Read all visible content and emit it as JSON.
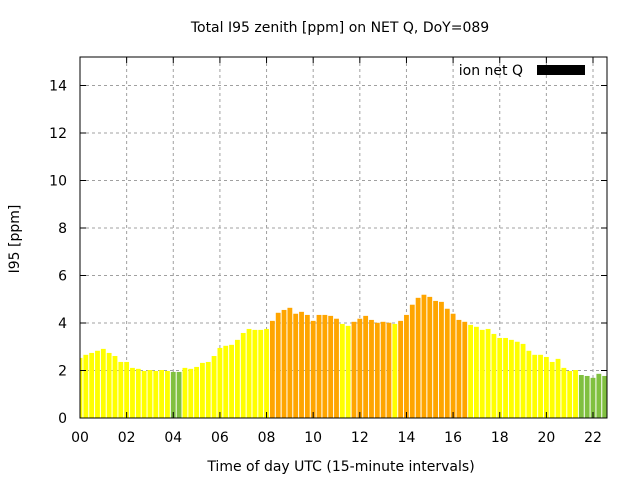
{
  "chart_data": {
    "type": "bar",
    "title": "Total I95 zenith [ppm] on NET Q, DoY=089",
    "xlabel": "Time of day UTC (15-minute intervals)",
    "ylabel": "I95 [ppm]",
    "xlim": [
      0,
      22.6
    ],
    "ylim": [
      0,
      15.2
    ],
    "x_ticks": [
      0,
      2,
      4,
      6,
      8,
      10,
      12,
      14,
      16,
      18,
      20,
      22
    ],
    "x_tick_labels": [
      "00",
      "02",
      "04",
      "06",
      "08",
      "10",
      "12",
      "14",
      "16",
      "18",
      "20",
      "22"
    ],
    "y_ticks": [
      0,
      2,
      4,
      6,
      8,
      10,
      12,
      14
    ],
    "y_tick_labels": [
      "0",
      "2",
      "4",
      "6",
      "8",
      "10",
      "12",
      "14"
    ],
    "grid": true,
    "legend": {
      "placement": "top-right",
      "entries": [
        {
          "label": "ion net Q",
          "color": "#000000"
        }
      ]
    },
    "bar_interval_hours": 0.25,
    "colors": {
      "g": "#80c040",
      "y": "#ffff00",
      "o": "#ffa500"
    },
    "series": [
      {
        "name": "ion net Q",
        "values": [
          2.53,
          2.66,
          2.74,
          2.83,
          2.91,
          2.74,
          2.61,
          2.36,
          2.36,
          2.11,
          2.07,
          1.98,
          2.02,
          1.98,
          2.02,
          1.98,
          1.94,
          1.94,
          2.11,
          2.07,
          2.15,
          2.32,
          2.36,
          2.61,
          2.95,
          3.04,
          3.08,
          3.29,
          3.58,
          3.75,
          3.71,
          3.71,
          3.75,
          4.09,
          4.43,
          4.55,
          4.64,
          4.39,
          4.47,
          4.34,
          4.09,
          4.34,
          4.34,
          4.3,
          4.18,
          3.96,
          3.88,
          4.05,
          4.18,
          4.3,
          4.13,
          4.01,
          4.05,
          4.01,
          3.96,
          4.09,
          4.34,
          4.77,
          5.06,
          5.19,
          5.1,
          4.93,
          4.89,
          4.6,
          4.39,
          4.13,
          4.05,
          3.92,
          3.84,
          3.71,
          3.75,
          3.54,
          3.37,
          3.37,
          3.29,
          3.21,
          3.12,
          2.83,
          2.66,
          2.66,
          2.57,
          2.36,
          2.49,
          2.11,
          1.98,
          2.02,
          1.81,
          1.77,
          1.69,
          1.86,
          1.77,
          1.81
        ],
        "categories": [
          "y",
          "y",
          "y",
          "y",
          "y",
          "y",
          "y",
          "y",
          "y",
          "y",
          "y",
          "y",
          "y",
          "y",
          "y",
          "y",
          "g",
          "g",
          "y",
          "y",
          "y",
          "y",
          "y",
          "y",
          "y",
          "y",
          "y",
          "y",
          "y",
          "y",
          "y",
          "y",
          "y",
          "o",
          "o",
          "o",
          "o",
          "o",
          "o",
          "o",
          "o",
          "o",
          "o",
          "o",
          "o",
          "y",
          "y",
          "o",
          "o",
          "o",
          "o",
          "o",
          "o",
          "o",
          "y",
          "o",
          "o",
          "o",
          "o",
          "o",
          "o",
          "o",
          "o",
          "o",
          "o",
          "o",
          "o",
          "y",
          "y",
          "y",
          "y",
          "y",
          "y",
          "y",
          "y",
          "y",
          "y",
          "y",
          "y",
          "y",
          "y",
          "y",
          "y",
          "y",
          "y",
          "y",
          "g",
          "g",
          "g",
          "g",
          "g",
          "g"
        ]
      }
    ]
  }
}
